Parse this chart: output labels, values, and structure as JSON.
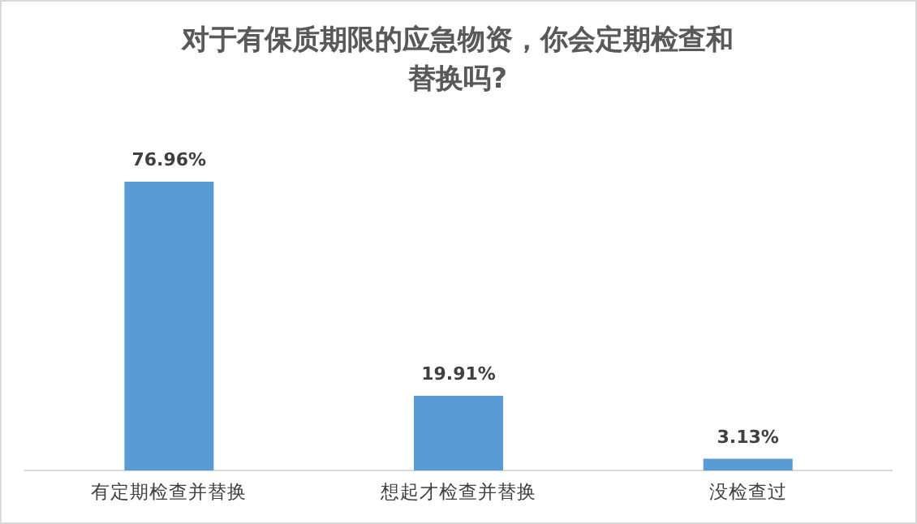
{
  "chart_data": {
    "type": "bar",
    "title": "对于有保质期限的应急物资，你会定期检查和替换吗?",
    "categories": [
      "有定期检查并替换",
      "想起才检查并替换",
      "没检查过"
    ],
    "values": [
      76.96,
      19.91,
      3.13
    ],
    "value_labels": [
      "76.96%",
      "19.91%",
      "3.13%"
    ],
    "color": "#5b9bd5"
  }
}
